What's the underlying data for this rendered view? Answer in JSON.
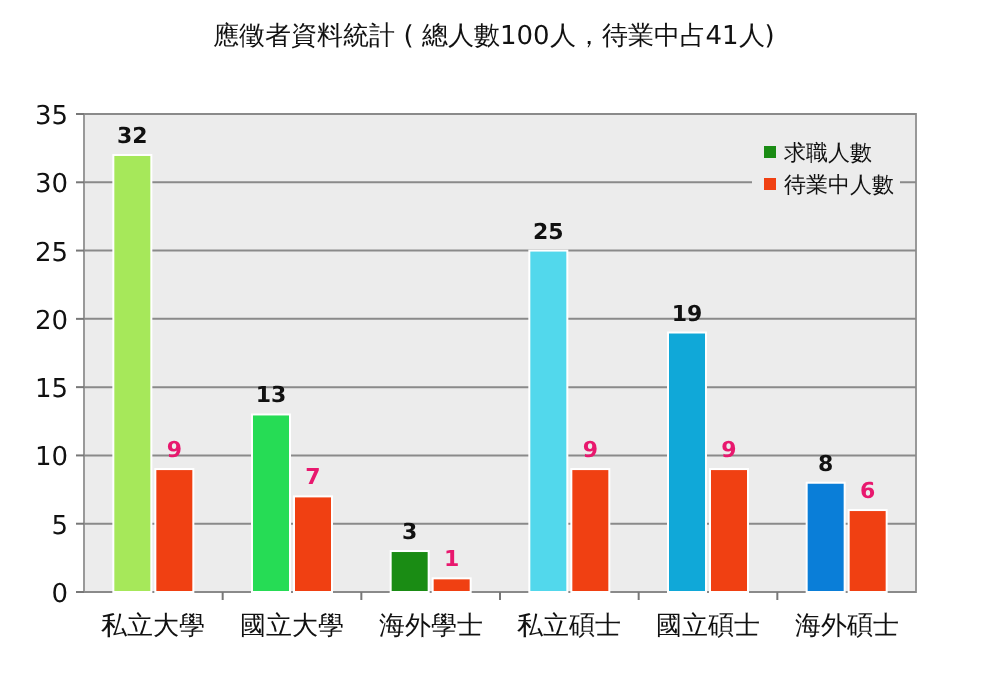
{
  "chart_data": {
    "type": "bar",
    "title": "應徵者資料統計 ( 總人數100人，待業中占41人)",
    "categories": [
      "私立大學",
      "國立大學",
      "海外學士",
      "私立碩士",
      "國立碩士",
      "海外碩士"
    ],
    "series": [
      {
        "name": "求職人數",
        "color": "#1a8c14",
        "colors": [
          "#a6e85a",
          "#26dc55",
          "#1a8c14",
          "#52d8ec",
          "#10a8d8",
          "#0a7ed8"
        ],
        "values": [
          32,
          13,
          3,
          25,
          19,
          8
        ]
      },
      {
        "name": "待業中人數",
        "color": "#f04012",
        "values": [
          9,
          7,
          1,
          9,
          9,
          6
        ]
      }
    ],
    "ylim": [
      0,
      35
    ],
    "yticks": [
      0,
      5,
      10,
      15,
      20,
      25,
      30,
      35
    ],
    "grid": "y",
    "legend": "top right",
    "data_labels": true
  }
}
